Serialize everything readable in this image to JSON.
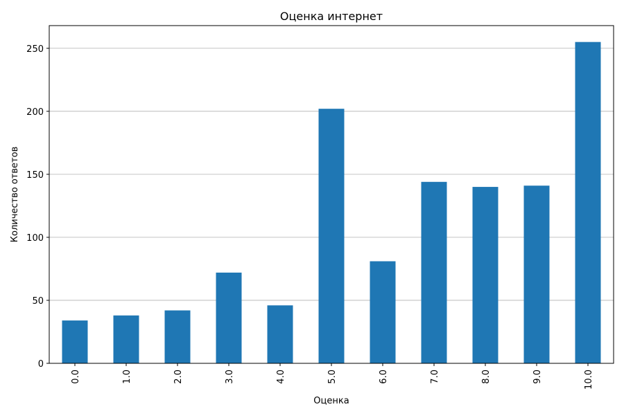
{
  "chart_data": {
    "type": "bar",
    "title": "Оценка интернет",
    "xlabel": "Оценка",
    "ylabel": "Количество ответов",
    "categories": [
      "0.0",
      "1.0",
      "2.0",
      "3.0",
      "4.0",
      "5.0",
      "6.0",
      "7.0",
      "8.0",
      "9.0",
      "10.0"
    ],
    "values": [
      34,
      38,
      42,
      72,
      46,
      202,
      81,
      144,
      140,
      141,
      255
    ],
    "ylim": [
      0,
      268
    ],
    "yticks": [
      0,
      50,
      100,
      150,
      200,
      250
    ],
    "grid": "y",
    "legend": "none",
    "colors": {
      "bar": "#1f77b4",
      "grid": "#b0b0b0",
      "axis": "#000000"
    }
  }
}
